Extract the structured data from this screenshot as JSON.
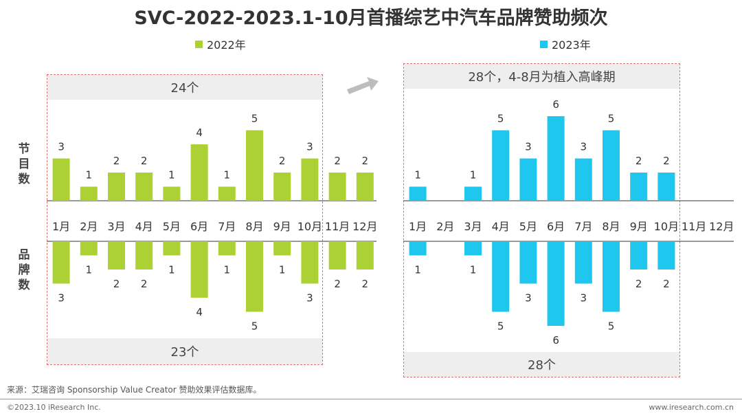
{
  "title": "SVC-2022-2023.1-10月首播综艺中汽车品牌赞助频次",
  "colors": {
    "series_2022": "#acd134",
    "series_2023": "#1fc6ed"
  },
  "y_labels": {
    "programs": "节目数",
    "brands": "品牌数"
  },
  "chart_data": {
    "type": "bar",
    "categories": [
      "1月",
      "2月",
      "3月",
      "4月",
      "5月",
      "6月",
      "7月",
      "8月",
      "9月",
      "10月",
      "11月",
      "12月"
    ],
    "panels": [
      {
        "legend": "2022年",
        "top_note": "24个",
        "bottom_note": "23个",
        "programs": [
          3,
          1,
          2,
          2,
          1,
          4,
          1,
          5,
          2,
          3,
          2,
          2
        ],
        "brands": [
          3,
          1,
          2,
          2,
          1,
          4,
          1,
          5,
          1,
          3,
          2,
          2
        ]
      },
      {
        "legend": "2023年",
        "top_note": "28个，4-8月为植入高峰期",
        "bottom_note": "28个",
        "programs": [
          1,
          null,
          1,
          5,
          3,
          6,
          3,
          5,
          2,
          2,
          null,
          null
        ],
        "brands": [
          1,
          null,
          1,
          5,
          3,
          6,
          3,
          5,
          2,
          2,
          null,
          null
        ]
      }
    ]
  },
  "footer": {
    "source": "来源：艾瑞咨询 Sponsorship Value Creator 赞助效果评估数据库。",
    "copyright": "©2023.10 iResearch Inc.",
    "website": "www.iresearch.com.cn"
  }
}
